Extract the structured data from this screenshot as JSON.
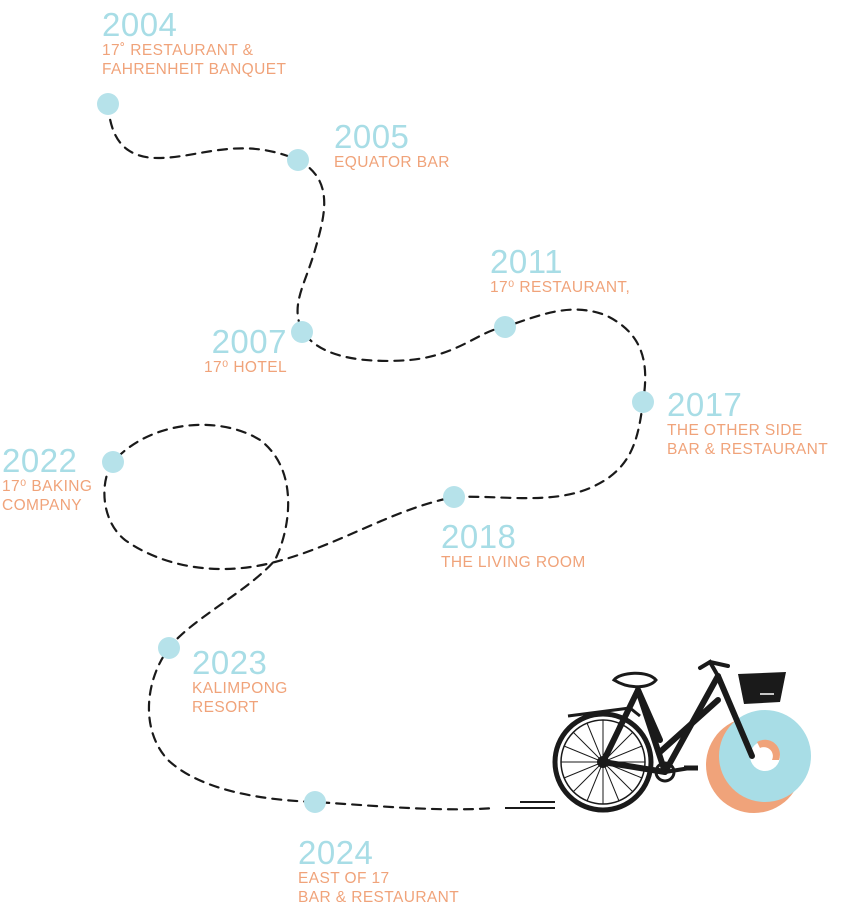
{
  "colors": {
    "year": "#a8dde6",
    "label": "#f0a37a",
    "dot": "#b6e2ea",
    "path": "#1a1a1a",
    "wheel_front": "#a8dde6",
    "wheel_shadow": "#f0a37a"
  },
  "milestones": [
    {
      "year": "2004",
      "lines": [
        "17˚ RESTAURANT &",
        "FAHRENHEIT BANQUET"
      ]
    },
    {
      "year": "2005",
      "lines": [
        "EQUATOR BAR"
      ]
    },
    {
      "year": "2007",
      "lines": [
        "17⁰ HOTEL"
      ]
    },
    {
      "year": "2011",
      "lines": [
        "17⁰ RESTAURANT,"
      ]
    },
    {
      "year": "2017",
      "lines": [
        "THE OTHER SIDE",
        "BAR & RESTAURANT"
      ]
    },
    {
      "year": "2018",
      "lines": [
        "THE LIVING ROOM"
      ]
    },
    {
      "year": "2022",
      "lines": [
        "17⁰ BAKING",
        "COMPANY"
      ]
    },
    {
      "year": "2023",
      "lines": [
        "KALIMPONG",
        "RESORT"
      ]
    },
    {
      "year": "2024",
      "lines": [
        "EAST OF 17",
        "BAR & RESTAURANT"
      ]
    }
  ],
  "illustration": {
    "name": "bicycle-illustration"
  }
}
